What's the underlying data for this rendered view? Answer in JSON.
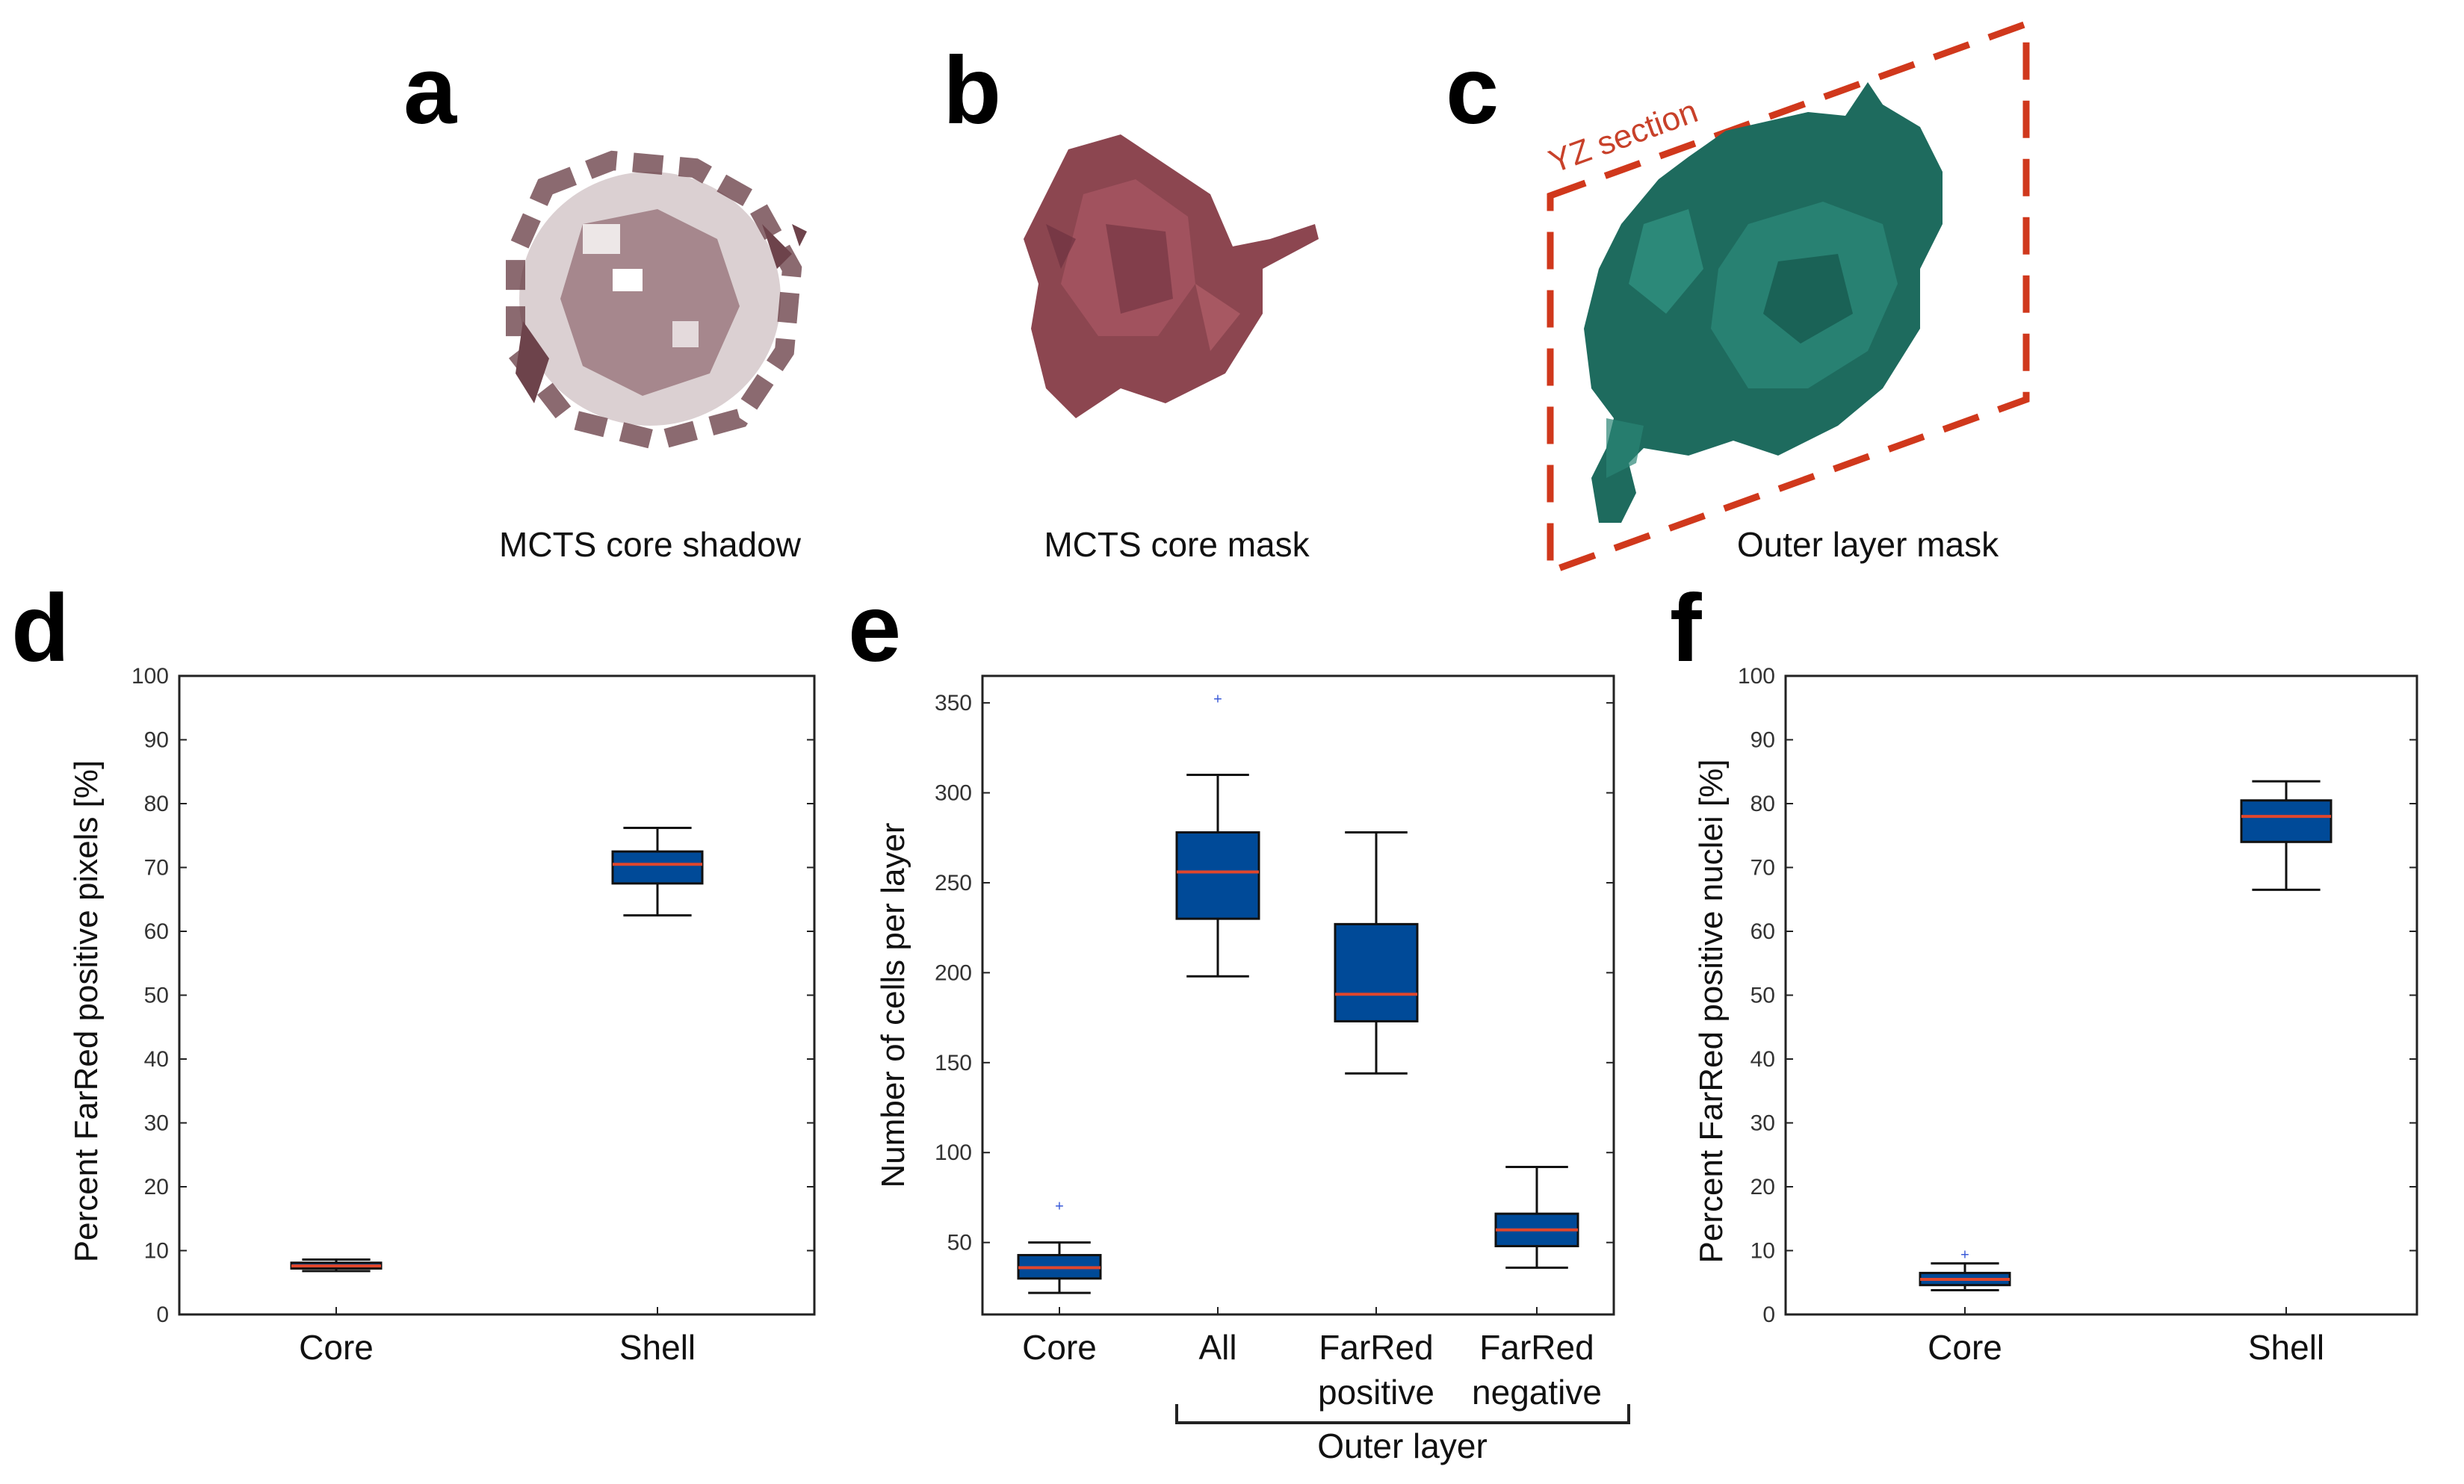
{
  "panels_top": [
    {
      "letter": "a",
      "caption": "MCTS core shadow"
    },
    {
      "letter": "b",
      "caption": "MCTS core mask"
    },
    {
      "letter": "c",
      "caption": "Outer layer mask",
      "section_label": "YZ section"
    }
  ],
  "colors": {
    "box_fill": "#004a98",
    "median": "#e0462c",
    "outlier": "#3b5bd8",
    "core_shadow": "#6e3a44",
    "core_mask": "#8c4650",
    "outer_mask": "#1e6b5e",
    "section_dash": "#d0381c"
  },
  "chart_data": [
    {
      "type": "box",
      "panel": "d",
      "title": "",
      "xlabel": "",
      "ylabel": "Percent FarRed positive pixels [%]",
      "ylim": [
        0,
        100
      ],
      "yticks": [
        "0",
        "10",
        "20",
        "30",
        "40",
        "50",
        "60",
        "70",
        "80",
        "90",
        "100"
      ],
      "yticks_values": [
        0,
        10,
        20,
        30,
        40,
        50,
        60,
        70,
        80,
        90,
        100
      ],
      "categories": [
        "Core",
        "Shell"
      ],
      "boxes": [
        {
          "min": 6.8,
          "q1": 7.2,
          "median": 7.6,
          "q3": 8.1,
          "max": 8.6,
          "outliers": []
        },
        {
          "min": 62.5,
          "q1": 67.5,
          "median": 70.5,
          "q3": 72.5,
          "max": 76.2,
          "outliers": []
        }
      ]
    },
    {
      "type": "box",
      "panel": "e",
      "title": "",
      "xlabel": "",
      "ylabel": "Number of cells per layer",
      "ylim": [
        10,
        365
      ],
      "yticks": [
        "50",
        "100",
        "150",
        "200",
        "250",
        "300",
        "350"
      ],
      "yticks_values": [
        50,
        100,
        150,
        200,
        250,
        300,
        350
      ],
      "categories": [
        "Core",
        "All",
        "FarRed",
        "FarRed"
      ],
      "categories_line2": [
        "",
        "",
        "positive",
        "negative"
      ],
      "group_label": "Outer layer",
      "boxes": [
        {
          "min": 22,
          "q1": 30,
          "median": 36,
          "q3": 43,
          "max": 50,
          "outliers": [
            70
          ]
        },
        {
          "min": 198,
          "q1": 230,
          "median": 256,
          "q3": 278,
          "max": 310,
          "outliers": [
            352
          ]
        },
        {
          "min": 144,
          "q1": 173,
          "median": 188,
          "q3": 227,
          "max": 278,
          "outliers": []
        },
        {
          "min": 36,
          "q1": 48,
          "median": 57,
          "q3": 66,
          "max": 92,
          "outliers": []
        }
      ]
    },
    {
      "type": "box",
      "panel": "f",
      "title": "",
      "xlabel": "",
      "ylabel": "Percent FarRed positive nuclei [%]",
      "ylim": [
        0,
        100
      ],
      "yticks": [
        "0",
        "10",
        "20",
        "30",
        "40",
        "50",
        "60",
        "70",
        "80",
        "90",
        "100"
      ],
      "yticks_values": [
        0,
        10,
        20,
        30,
        40,
        50,
        60,
        70,
        80,
        90,
        100
      ],
      "categories": [
        "Core",
        "Shell"
      ],
      "boxes": [
        {
          "min": 3.8,
          "q1": 4.6,
          "median": 5.5,
          "q3": 6.5,
          "max": 8.0,
          "outliers": [
            9.3
          ]
        },
        {
          "min": 66.5,
          "q1": 74,
          "median": 78,
          "q3": 80.5,
          "max": 83.5,
          "outliers": []
        }
      ]
    }
  ]
}
